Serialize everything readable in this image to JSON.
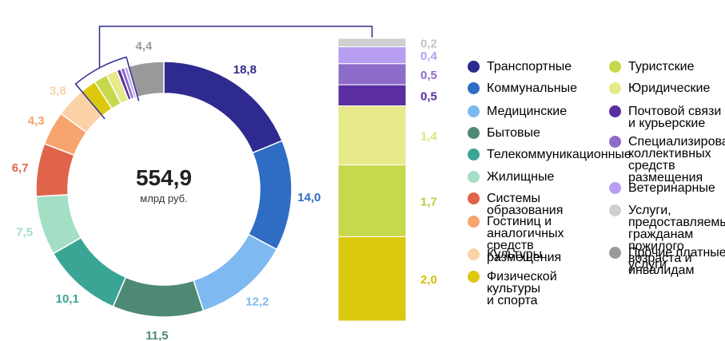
{
  "chart_data": [
    {
      "type": "pie",
      "variant": "donut",
      "center_value": "554,9",
      "center_unit": "млрд руб.",
      "slices": [
        {
          "label": "Транспортные",
          "value": 18.8,
          "display": "18,8",
          "color": "#2e2a8f"
        },
        {
          "label": "Коммунальные",
          "value": 14.0,
          "display": "14,0",
          "color": "#2f6cc4"
        },
        {
          "label": "Медицинские",
          "value": 12.2,
          "display": "12,2",
          "color": "#7fb9f2"
        },
        {
          "label": "Бытовые",
          "value": 11.5,
          "display": "11,5",
          "color": "#4e8a73"
        },
        {
          "label": "Телекоммуникационные",
          "value": 10.1,
          "display": "10,1",
          "color": "#3aa595"
        },
        {
          "label": "Жилищные",
          "value": 7.5,
          "display": "7,5",
          "color": "#a3dfc5"
        },
        {
          "label": "Системы образования",
          "value": 6.7,
          "display": "6,7",
          "color": "#e0644a"
        },
        {
          "label": "Гостиниц и аналогичных средств размещения",
          "value": 4.3,
          "display": "4,3",
          "color": "#f7a46f"
        },
        {
          "label": "Культуры",
          "value": 3.8,
          "display": "3,8",
          "color": "#fad2a6"
        },
        {
          "label": "Физической культуры и спорта",
          "value": 2.0,
          "display": "",
          "color": "#dcc90f"
        },
        {
          "label": "Туристские",
          "value": 1.7,
          "display": "",
          "color": "#c6d94d"
        },
        {
          "label": "Юридические",
          "value": 1.4,
          "display": "",
          "color": "#e6ea8a"
        },
        {
          "label": "Почтовой связи и курьерские",
          "value": 0.5,
          "display": "",
          "color": "#5a2ea1"
        },
        {
          "label": "Специализированных коллективных средств размещения",
          "value": 0.5,
          "display": "",
          "color": "#8d6cc9"
        },
        {
          "label": "Ветеринарные",
          "value": 0.4,
          "display": "",
          "color": "#b79ef2"
        },
        {
          "label": "Услуги, предоставляемые гражданам пожилого возраста и инвалидам",
          "value": 0.2,
          "display": "",
          "color": "#cfcfcf"
        },
        {
          "label": "Прочие платные услуги",
          "value": 4.4,
          "display": "4,4",
          "color": "#999999"
        }
      ]
    },
    {
      "type": "bar",
      "variant": "stacked-column",
      "segments": [
        {
          "label": "Физической культуры и спорта",
          "value": 2.0,
          "display": "2,0",
          "color": "#dcc90f",
          "text_color": "#d4c00a"
        },
        {
          "label": "Туристские",
          "value": 1.7,
          "display": "1,7",
          "color": "#c6d94d",
          "text_color": "#b9cc3d"
        },
        {
          "label": "Юридические",
          "value": 1.4,
          "display": "1,4",
          "color": "#e6ea8a",
          "text_color": "#dfe37a"
        },
        {
          "label": "Почтовой связи и курьерские",
          "value": 0.5,
          "display": "0,5",
          "color": "#5a2ea1",
          "text_color": "#5a2ea1"
        },
        {
          "label": "Специализированных коллективных средств размещения",
          "value": 0.5,
          "display": "0,5",
          "color": "#8d6cc9",
          "text_color": "#8d6cc9"
        },
        {
          "label": "Ветеринарные",
          "value": 0.4,
          "display": "0,4",
          "color": "#b79ef2",
          "text_color": "#b79ef2"
        },
        {
          "label": "Услуги, предоставляемые гражданам пожилого возраста и инвалидам",
          "value": 0.2,
          "display": "0,2",
          "color": "#cfcfcf",
          "text_color": "#c4c4c4"
        }
      ]
    }
  ],
  "legend": {
    "col1": [
      {
        "label": "Транспортные",
        "color": "#2e2a8f"
      },
      {
        "label": "Коммунальные",
        "color": "#2f6cc4"
      },
      {
        "label": "Медицинские",
        "color": "#7fb9f2"
      },
      {
        "label": "Бытовые",
        "color": "#4e8a73"
      },
      {
        "label": "Телекоммуникационные",
        "color": "#3aa595"
      },
      {
        "label": "Жилищные",
        "color": "#a3dfc5"
      },
      {
        "label": "Системы образования",
        "color": "#e0644a"
      },
      {
        "label": "Гостиниц и аналогичных\nсредств размещения",
        "color": "#f7a46f"
      },
      {
        "label": "Культуры",
        "color": "#fad2a6"
      },
      {
        "label": "Физической культуры\nи спорта",
        "color": "#dcc90f"
      }
    ],
    "col2": [
      {
        "label": "Туристские",
        "color": "#c6d94d"
      },
      {
        "label": "Юридические",
        "color": "#e6ea8a"
      },
      {
        "label": "Почтовой связи\nи курьерские",
        "color": "#5a2ea1"
      },
      {
        "label": "Специализированных\nколлективных средств\nразмещения",
        "color": "#8d6cc9"
      },
      {
        "label": "Ветеринарные",
        "color": "#b79ef2"
      },
      {
        "label": "Услуги, предоставляемые\nгражданам пожилого\nвозраста и инвалидам",
        "color": "#cfcfcf"
      },
      {
        "label": "Прочие платные\nуслуги",
        "color": "#999999"
      }
    ]
  }
}
